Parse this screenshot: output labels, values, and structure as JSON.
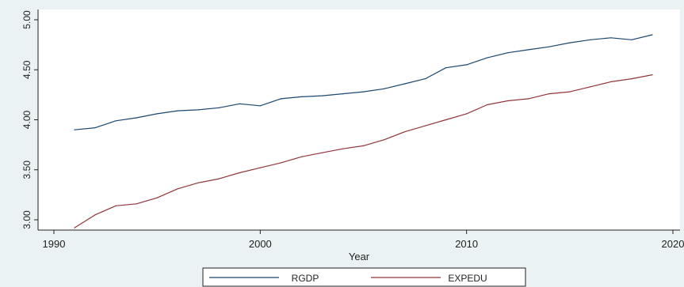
{
  "chart_data": {
    "type": "line",
    "title": "",
    "xlabel": "Year",
    "ylabel": "",
    "xlim": [
      1990,
      2020
    ],
    "ylim": [
      3.0,
      5.0
    ],
    "xticks": [
      1990,
      2000,
      2010,
      2020
    ],
    "xtick_labels": [
      "1990",
      "2000",
      "2010",
      "2020"
    ],
    "yticks": [
      3.0,
      3.5,
      4.0,
      4.5,
      5.0
    ],
    "ytick_labels": [
      "3.00",
      "3.50",
      "4.00",
      "4.50",
      "5.00"
    ],
    "grid": false,
    "legend_position": "bottom",
    "x": [
      1991,
      1992,
      1993,
      1994,
      1995,
      1996,
      1997,
      1998,
      1999,
      2000,
      2001,
      2002,
      2003,
      2004,
      2005,
      2006,
      2007,
      2008,
      2009,
      2010,
      2011,
      2012,
      2013,
      2014,
      2015,
      2016,
      2017,
      2018,
      2019
    ],
    "series": [
      {
        "name": "RGDP",
        "color": "#1a476f",
        "values": [
          3.9,
          3.92,
          3.99,
          4.02,
          4.06,
          4.09,
          4.1,
          4.12,
          4.16,
          4.14,
          4.21,
          4.23,
          4.24,
          4.26,
          4.28,
          4.31,
          4.36,
          4.41,
          4.52,
          4.55,
          4.62,
          4.67,
          4.7,
          4.73,
          4.77,
          4.8,
          4.82,
          4.8,
          4.85
        ]
      },
      {
        "name": "EXPEDU",
        "color": "#90353b",
        "values": [
          2.92,
          3.05,
          3.14,
          3.16,
          3.22,
          3.31,
          3.37,
          3.41,
          3.47,
          3.52,
          3.57,
          3.63,
          3.67,
          3.71,
          3.74,
          3.8,
          3.88,
          3.94,
          4.0,
          4.06,
          4.15,
          4.19,
          4.21,
          4.26,
          4.28,
          4.33,
          4.38,
          4.41,
          4.45
        ]
      }
    ]
  }
}
